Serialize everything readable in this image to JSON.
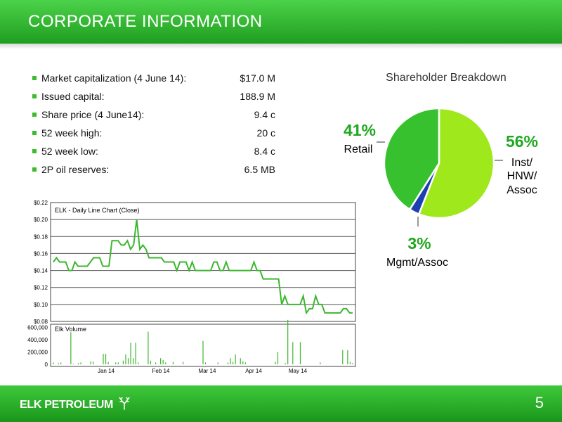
{
  "header": {
    "title": "CORPORATE INFORMATION"
  },
  "stats": [
    {
      "label": "Market capitalization (4 June 14):",
      "value": "$17.0 M"
    },
    {
      "label": "Issued capital:",
      "value": "188.9 M"
    },
    {
      "label": "Share price (4 June14):",
      "value": "9.4 c"
    },
    {
      "label": "52 week high:",
      "value": "20 c"
    },
    {
      "label": "52 week low:",
      "value": "8.4 c"
    },
    {
      "label": "2P oil reserves:",
      "value": "6.5 MB"
    }
  ],
  "chart_data": [
    {
      "type": "line",
      "title": "ELK - Daily Line Chart (Close)",
      "y_ticks": [
        "$0.22",
        "$0.20",
        "$0.18",
        "$0.16",
        "$0.14",
        "$0.12",
        "$0.10",
        "$0.08"
      ],
      "ylim": [
        0.08,
        0.22
      ],
      "x_ticks": [
        "Jan 14",
        "Feb 14",
        "Mar 14",
        "Apr 14",
        "May 14"
      ],
      "series": [
        {
          "values": [
            0.15,
            0.155,
            0.15,
            0.15,
            0.15,
            0.14,
            0.14,
            0.15,
            0.145,
            0.145,
            0.145,
            0.145,
            0.15,
            0.155,
            0.155,
            0.155,
            0.145,
            0.145,
            0.145,
            0.175,
            0.175,
            0.175,
            0.17,
            0.17,
            0.175,
            0.165,
            0.17,
            0.2,
            0.165,
            0.17,
            0.165,
            0.155,
            0.155,
            0.155,
            0.155,
            0.155,
            0.15,
            0.15,
            0.15,
            0.15,
            0.14,
            0.15,
            0.15,
            0.15,
            0.14,
            0.15,
            0.14,
            0.14,
            0.14,
            0.14,
            0.14,
            0.14,
            0.15,
            0.15,
            0.14,
            0.14,
            0.15,
            0.14,
            0.14,
            0.14,
            0.14,
            0.14,
            0.14,
            0.14,
            0.14,
            0.15,
            0.14,
            0.14,
            0.13,
            0.13,
            0.13,
            0.13,
            0.13,
            0.13,
            0.1,
            0.11,
            0.1,
            0.1,
            0.1,
            0.1,
            0.1,
            0.11,
            0.09,
            0.095,
            0.095,
            0.11,
            0.1,
            0.1,
            0.09,
            0.09,
            0.09,
            0.09,
            0.09,
            0.09,
            0.095,
            0.095,
            0.09,
            0.09
          ]
        }
      ]
    },
    {
      "type": "bar",
      "title": "Elk Volume",
      "y_ticks": [
        "600,000",
        "400,000",
        "200,000",
        "0"
      ],
      "ylim": [
        0,
        650000
      ],
      "values": [
        30000,
        0,
        20000,
        30000,
        0,
        0,
        0,
        520000,
        10000,
        0,
        20000,
        30000,
        0,
        0,
        0,
        50000,
        40000,
        0,
        0,
        0,
        170000,
        170000,
        40000,
        0,
        0,
        30000,
        30000,
        0,
        60000,
        160000,
        100000,
        350000,
        100000,
        350000,
        30000,
        0,
        0,
        0,
        530000,
        60000,
        0,
        30000,
        0,
        100000,
        70000,
        30000,
        0,
        0,
        40000,
        0,
        0,
        0,
        40000,
        0,
        0,
        0,
        0,
        0,
        0,
        0,
        380000,
        30000,
        0,
        0,
        0,
        0,
        30000,
        0,
        0,
        0,
        30000,
        100000,
        40000,
        160000,
        0,
        100000,
        50000,
        30000,
        0,
        0,
        0,
        0,
        0,
        0,
        0,
        0,
        0,
        0,
        0,
        40000,
        200000,
        0,
        0,
        20000,
        720000,
        0,
        360000,
        0,
        0,
        360000,
        0,
        0,
        0,
        0,
        0,
        0,
        0,
        30000,
        0,
        0,
        0,
        0,
        0,
        0,
        0,
        0,
        230000,
        0,
        230000,
        40000,
        20000
      ],
      "x_ticks": [
        "Jan 14",
        "Feb 14",
        "Mar 14",
        "Apr 14",
        "May 14"
      ]
    },
    {
      "type": "pie",
      "title": "Shareholder Breakdown",
      "slices": [
        {
          "label_lines": [
            "Inst/",
            "HNW/",
            "Assoc"
          ],
          "pct_text": "56%",
          "value": 56,
          "color": "#9ee81b"
        },
        {
          "label_lines": [
            "Mgmt/Assoc"
          ],
          "pct_text": "3%",
          "value": 3,
          "color": "#1e3fb0"
        },
        {
          "label_lines": [
            "Retail"
          ],
          "pct_text": "41%",
          "value": 41,
          "color": "#38c12f"
        }
      ]
    }
  ],
  "footer": {
    "logo_text": "ELK PETROLEUM",
    "page_number": "5"
  },
  "colors": {
    "header_green": "#2db82b",
    "bullet": "#3cbc2e",
    "line": "#3cb72e",
    "pct_text": "#1fa81f"
  }
}
